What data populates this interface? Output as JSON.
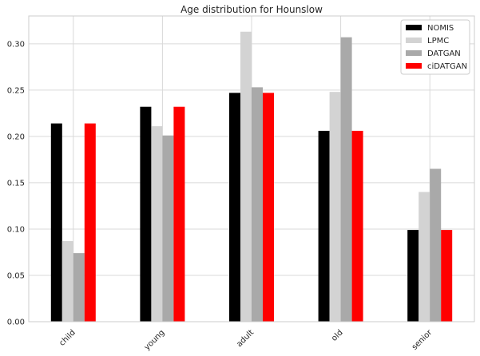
{
  "chart_data": {
    "type": "bar",
    "title": "Age distribution for Hounslow",
    "xlabel": "",
    "ylabel": "",
    "categories": [
      "child",
      "young",
      "adult",
      "old",
      "senior"
    ],
    "series": [
      {
        "name": "NOMIS",
        "color": "#000000",
        "values": [
          0.214,
          0.232,
          0.247,
          0.206,
          0.099
        ]
      },
      {
        "name": "LPMC",
        "color": "#d3d3d3",
        "values": [
          0.087,
          0.211,
          0.313,
          0.248,
          0.14
        ]
      },
      {
        "name": "DATGAN",
        "color": "#a9a9a9",
        "values": [
          0.074,
          0.201,
          0.253,
          0.307,
          0.165
        ]
      },
      {
        "name": "ciDATGAN",
        "color": "#ff0000",
        "values": [
          0.214,
          0.232,
          0.247,
          0.206,
          0.099
        ]
      }
    ],
    "ylim": [
      0,
      0.33
    ],
    "yticks": [
      "0.00",
      "0.05",
      "0.10",
      "0.15",
      "0.20",
      "0.25",
      "0.30"
    ],
    "grid": true,
    "legend_position": "top-right"
  }
}
